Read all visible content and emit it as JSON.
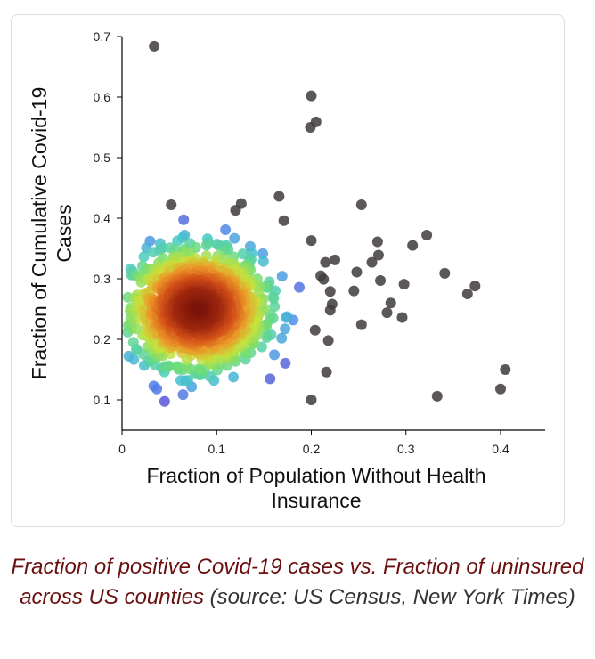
{
  "colors": {
    "outlier": "#3f3b3c",
    "caption_main": "#6b1010",
    "caption_source": "#333333"
  },
  "caption": {
    "main": "Fraction of positive Covid-19 cases vs. Fraction of uninsured across US counties",
    "source": "(source: US Census, New York Times)"
  },
  "chart_data": {
    "type": "scatter",
    "xlabel_lines": [
      "Fraction of Population Without Health",
      "Insurance"
    ],
    "ylabel_lines": [
      "Fraction of Cumulative Covid-19",
      "Cases"
    ],
    "xlim": [
      0,
      0.45
    ],
    "ylim": [
      0.06,
      0.72
    ],
    "x_ticks": [
      "0",
      "0.1",
      "0.2",
      "0.3",
      "0.4"
    ],
    "y_ticks": [
      "0.1",
      "0.2",
      "0.3",
      "0.4",
      "0.5",
      "0.6",
      "0.7"
    ],
    "x_tick_values": [
      0,
      0.1,
      0.2,
      0.3,
      0.4
    ],
    "y_tick_values": [
      0.1,
      0.2,
      0.3,
      0.4,
      0.5,
      0.6,
      0.7
    ],
    "density_cluster": {
      "center": [
        0.08,
        0.25
      ],
      "spread_x": [
        0.005,
        0.2
      ],
      "spread_y": [
        0.07,
        0.41
      ],
      "colored_by_density": true
    },
    "outliers": [
      {
        "x": 0.034,
        "y": 0.684
      },
      {
        "x": 0.2,
        "y": 0.602
      },
      {
        "x": 0.205,
        "y": 0.559
      },
      {
        "x": 0.199,
        "y": 0.55
      },
      {
        "x": 0.166,
        "y": 0.436
      },
      {
        "x": 0.126,
        "y": 0.424
      },
      {
        "x": 0.253,
        "y": 0.422
      },
      {
        "x": 0.052,
        "y": 0.422
      },
      {
        "x": 0.12,
        "y": 0.413
      },
      {
        "x": 0.171,
        "y": 0.396
      },
      {
        "x": 0.322,
        "y": 0.372
      },
      {
        "x": 0.2,
        "y": 0.363
      },
      {
        "x": 0.27,
        "y": 0.361
      },
      {
        "x": 0.307,
        "y": 0.355
      },
      {
        "x": 0.271,
        "y": 0.339
      },
      {
        "x": 0.225,
        "y": 0.331
      },
      {
        "x": 0.264,
        "y": 0.327
      },
      {
        "x": 0.215,
        "y": 0.327
      },
      {
        "x": 0.248,
        "y": 0.311
      },
      {
        "x": 0.341,
        "y": 0.309
      },
      {
        "x": 0.21,
        "y": 0.305
      },
      {
        "x": 0.213,
        "y": 0.299
      },
      {
        "x": 0.273,
        "y": 0.297
      },
      {
        "x": 0.298,
        "y": 0.291
      },
      {
        "x": 0.373,
        "y": 0.288
      },
      {
        "x": 0.245,
        "y": 0.28
      },
      {
        "x": 0.22,
        "y": 0.279
      },
      {
        "x": 0.365,
        "y": 0.275
      },
      {
        "x": 0.222,
        "y": 0.258
      },
      {
        "x": 0.284,
        "y": 0.26
      },
      {
        "x": 0.22,
        "y": 0.248
      },
      {
        "x": 0.28,
        "y": 0.244
      },
      {
        "x": 0.296,
        "y": 0.236
      },
      {
        "x": 0.253,
        "y": 0.224
      },
      {
        "x": 0.218,
        "y": 0.198
      },
      {
        "x": 0.204,
        "y": 0.215
      },
      {
        "x": 0.405,
        "y": 0.15
      },
      {
        "x": 0.216,
        "y": 0.146
      },
      {
        "x": 0.4,
        "y": 0.118
      },
      {
        "x": 0.333,
        "y": 0.106
      },
      {
        "x": 0.2,
        "y": 0.1
      }
    ]
  }
}
